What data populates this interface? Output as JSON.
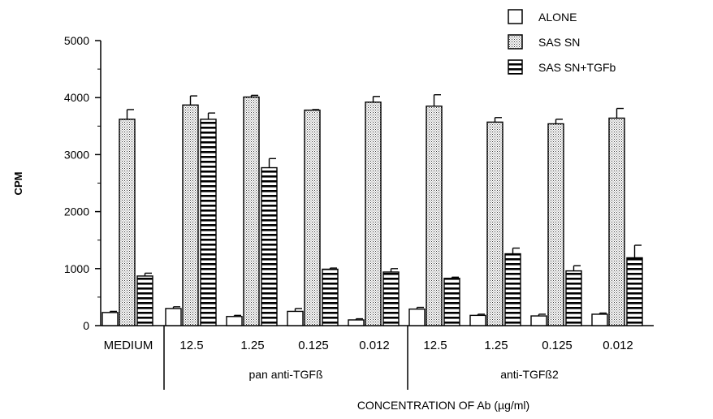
{
  "chart_data": {
    "type": "bar",
    "title": "",
    "xlabel": "CONCENTRATION OF Ab (µg/ml)",
    "ylabel": "CPM",
    "ylim": [
      0,
      5000
    ],
    "yticks": [
      0,
      1000,
      2000,
      3000,
      4000,
      5000
    ],
    "grid": false,
    "legend_position": "top-right",
    "categories": [
      "MEDIUM",
      "12.5",
      "1.25",
      "0.125",
      "0.012",
      "12.5",
      "1.25",
      "0.125",
      "0.012"
    ],
    "groups": [
      {
        "label": "pan anti-TGFß",
        "categories": [
          "12.5",
          "1.25",
          "0.125",
          "0.012"
        ]
      },
      {
        "label": "anti-TGFß2",
        "categories": [
          "12.5",
          "1.25",
          "0.125",
          "0.012"
        ]
      }
    ],
    "series": [
      {
        "name": "ALONE",
        "pattern": "open",
        "values": [
          230,
          300,
          160,
          250,
          100,
          290,
          180,
          170,
          200
        ],
        "errors": [
          20,
          30,
          20,
          50,
          20,
          30,
          20,
          30,
          20
        ]
      },
      {
        "name": "SAS SN",
        "pattern": "dotted",
        "values": [
          3620,
          3870,
          4010,
          3780,
          3920,
          3850,
          3570,
          3540,
          3640
        ],
        "errors": [
          170,
          160,
          30,
          10,
          100,
          200,
          80,
          80,
          170
        ]
      },
      {
        "name": "SAS SN+TGFb",
        "pattern": "horizontal-stripes",
        "values": [
          870,
          3620,
          2770,
          990,
          940,
          830,
          1260,
          960,
          1190
        ],
        "errors": [
          50,
          110,
          160,
          20,
          60,
          20,
          100,
          90,
          220
        ]
      }
    ]
  }
}
